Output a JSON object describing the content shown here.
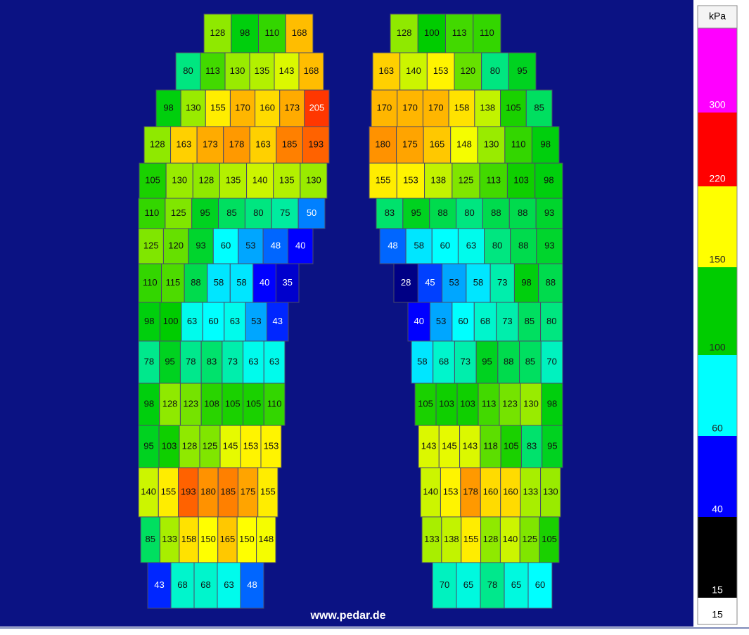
{
  "left_foot": {
    "rows": [
      [
        128,
        98,
        110,
        168
      ],
      [
        80,
        113,
        130,
        135,
        143,
        168
      ],
      [
        98,
        130,
        155,
        170,
        160,
        173,
        205
      ],
      [
        128,
        163,
        173,
        178,
        163,
        185,
        193
      ],
      [
        105,
        130,
        128,
        135,
        140,
        135,
        130
      ],
      [
        110,
        125,
        95,
        85,
        80,
        75,
        50
      ],
      [
        125,
        120,
        93,
        60,
        53,
        48,
        40
      ],
      [
        110,
        115,
        88,
        58,
        58,
        40,
        35
      ],
      [
        98,
        100,
        63,
        60,
        63,
        53,
        43
      ],
      [
        78,
        95,
        78,
        83,
        73,
        63,
        63
      ],
      [
        98,
        128,
        123,
        108,
        105,
        105,
        110
      ],
      [
        95,
        103,
        128,
        125,
        145,
        153,
        153
      ],
      [
        140,
        155,
        193,
        180,
        185,
        175,
        155
      ],
      [
        85,
        133,
        158,
        150,
        165,
        150,
        148
      ],
      [
        43,
        68,
        68,
        63,
        48
      ]
    ]
  },
  "right_foot": {
    "rows": [
      [
        128,
        100,
        113,
        110
      ],
      [
        163,
        140,
        153,
        120,
        80,
        95
      ],
      [
        170,
        170,
        170,
        158,
        138,
        105,
        85
      ],
      [
        180,
        175,
        165,
        148,
        130,
        110,
        98
      ],
      [
        155,
        153,
        138,
        125,
        113,
        103,
        98
      ],
      [
        83,
        95,
        88,
        80,
        88,
        88,
        93
      ],
      [
        48,
        58,
        60,
        63,
        80,
        88,
        93
      ],
      [
        28,
        45,
        53,
        58,
        73,
        98,
        88
      ],
      [
        40,
        53,
        60,
        68,
        73,
        85,
        80
      ],
      [
        58,
        68,
        73,
        95,
        88,
        85,
        70
      ],
      [
        105,
        103,
        103,
        113,
        123,
        130,
        98
      ],
      [
        143,
        145,
        143,
        118,
        105,
        83,
        95
      ],
      [
        140,
        153,
        178,
        160,
        160,
        133,
        130
      ],
      [
        133,
        138,
        155,
        128,
        140,
        125,
        105
      ],
      [
        70,
        65,
        78,
        65,
        60
      ]
    ]
  },
  "legend": {
    "unit": "kPa",
    "bands": [
      {
        "value": 300,
        "color": "#ff00ff"
      },
      {
        "value": 220,
        "color": "#ff0000"
      },
      {
        "value": 150,
        "color": "#ffff00"
      },
      {
        "value": 100,
        "color": "#00cc00"
      },
      {
        "value": 60,
        "color": "#00ffff"
      },
      {
        "value": 40,
        "color": "#0000ff"
      },
      {
        "value": 15,
        "color": "#000000"
      }
    ],
    "current_min": 15
  },
  "footer": "www.pedar.de"
}
